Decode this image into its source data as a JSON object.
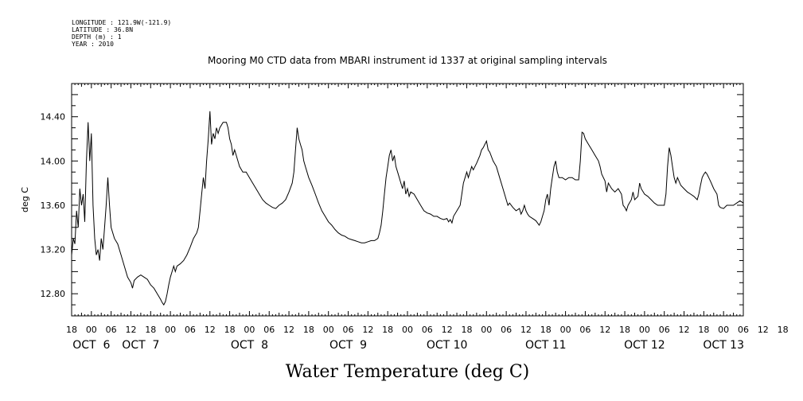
{
  "header_lines": [
    "LONGITUDE : 121.9W(-121.9)",
    "LATITUDE : 36.8N",
    "DEPTH (m) : 1",
    "YEAR : 2010"
  ],
  "chart_data": {
    "type": "line",
    "title": "Mooring M0 CTD data from MBARI instrument id 1337 at original sampling intervals",
    "xlabel": "Water Temperature (deg C)",
    "ylabel": "deg C",
    "x_unit": "hours since Oct 5 18:00",
    "xlim": [
      0,
      204
    ],
    "ylim": [
      12.6,
      14.7
    ],
    "yticks": [
      12.8,
      13.2,
      13.6,
      14.0,
      14.4
    ],
    "ytick_labels": [
      "12.80",
      "13.20",
      "13.60",
      "14.00",
      "14.40"
    ],
    "xtick_labels": [
      "18",
      "00",
      "06",
      "12",
      "18",
      "00",
      "06",
      "12",
      "18",
      "00",
      "06",
      "12",
      "18",
      "00",
      "06",
      "12",
      "18",
      "00",
      "06",
      "12",
      "18",
      "00",
      "06",
      "12",
      "18",
      "00",
      "06",
      "12",
      "18",
      "00",
      "06",
      "12",
      "18",
      "00",
      "06",
      "12",
      "18"
    ],
    "day_labels": [
      {
        "text": "OCT  6",
        "hour": 6
      },
      {
        "text": "OCT  7",
        "hour": 21
      },
      {
        "text": "OCT  8",
        "hour": 54
      },
      {
        "text": "OCT  9",
        "hour": 84
      },
      {
        "text": "OCT 10",
        "hour": 114
      },
      {
        "text": "OCT 11",
        "hour": 144
      },
      {
        "text": "OCT 12",
        "hour": 174
      },
      {
        "text": "OCT 13",
        "hour": 198
      }
    ],
    "grid": false,
    "series": [
      {
        "values": [
          [
            0,
            13.15
          ],
          [
            0.5,
            13.3
          ],
          [
            1,
            13.25
          ],
          [
            1.5,
            13.55
          ],
          [
            2,
            13.4
          ],
          [
            2.5,
            13.75
          ],
          [
            3,
            13.6
          ],
          [
            3.5,
            13.7
          ],
          [
            4,
            13.45
          ],
          [
            4.5,
            14.0
          ],
          [
            5,
            14.35
          ],
          [
            5.5,
            14.0
          ],
          [
            6,
            14.25
          ],
          [
            6.5,
            13.6
          ],
          [
            7,
            13.3
          ],
          [
            7.5,
            13.15
          ],
          [
            8,
            13.2
          ],
          [
            8.5,
            13.1
          ],
          [
            9,
            13.3
          ],
          [
            9.5,
            13.2
          ],
          [
            10,
            13.4
          ],
          [
            10.5,
            13.6
          ],
          [
            11,
            13.85
          ],
          [
            11.5,
            13.6
          ],
          [
            12,
            13.4
          ],
          [
            13,
            13.3
          ],
          [
            14,
            13.25
          ],
          [
            15,
            13.15
          ],
          [
            16,
            13.05
          ],
          [
            17,
            12.95
          ],
          [
            18,
            12.9
          ],
          [
            18.5,
            12.85
          ],
          [
            19,
            12.92
          ],
          [
            20,
            12.95
          ],
          [
            21,
            12.97
          ],
          [
            22,
            12.95
          ],
          [
            23,
            12.93
          ],
          [
            24,
            12.88
          ],
          [
            25,
            12.85
          ],
          [
            26,
            12.8
          ],
          [
            27,
            12.75
          ],
          [
            27.5,
            12.72
          ],
          [
            28,
            12.7
          ],
          [
            28.5,
            12.73
          ],
          [
            29,
            12.8
          ],
          [
            29.5,
            12.88
          ],
          [
            30,
            12.95
          ],
          [
            30.5,
            13.0
          ],
          [
            31,
            13.05
          ],
          [
            31.5,
            13.0
          ],
          [
            32,
            13.05
          ],
          [
            33,
            13.07
          ],
          [
            34,
            13.1
          ],
          [
            35,
            13.15
          ],
          [
            36,
            13.22
          ],
          [
            37,
            13.3
          ],
          [
            38,
            13.35
          ],
          [
            38.5,
            13.4
          ],
          [
            39,
            13.55
          ],
          [
            39.5,
            13.7
          ],
          [
            40,
            13.85
          ],
          [
            40.5,
            13.75
          ],
          [
            41,
            14.0
          ],
          [
            41.5,
            14.2
          ],
          [
            42,
            14.45
          ],
          [
            42.5,
            14.15
          ],
          [
            43,
            14.25
          ],
          [
            43.5,
            14.2
          ],
          [
            44,
            14.3
          ],
          [
            44.5,
            14.25
          ],
          [
            45,
            14.3
          ],
          [
            46,
            14.35
          ],
          [
            47,
            14.35
          ],
          [
            47.5,
            14.3
          ],
          [
            48,
            14.2
          ],
          [
            48.5,
            14.15
          ],
          [
            49,
            14.05
          ],
          [
            49.5,
            14.1
          ],
          [
            50,
            14.05
          ],
          [
            51,
            13.95
          ],
          [
            52,
            13.9
          ],
          [
            53,
            13.9
          ],
          [
            54,
            13.85
          ],
          [
            55,
            13.8
          ],
          [
            56,
            13.75
          ],
          [
            57,
            13.7
          ],
          [
            58,
            13.65
          ],
          [
            59,
            13.62
          ],
          [
            60,
            13.6
          ],
          [
            61,
            13.58
          ],
          [
            62,
            13.57
          ],
          [
            63,
            13.6
          ],
          [
            64,
            13.62
          ],
          [
            65,
            13.65
          ],
          [
            66,
            13.72
          ],
          [
            67,
            13.8
          ],
          [
            67.5,
            13.9
          ],
          [
            68,
            14.1
          ],
          [
            68.5,
            14.3
          ],
          [
            69,
            14.2
          ],
          [
            69.5,
            14.15
          ],
          [
            70,
            14.1
          ],
          [
            70.5,
            14.0
          ],
          [
            71,
            13.95
          ],
          [
            72,
            13.85
          ],
          [
            73,
            13.78
          ],
          [
            74,
            13.7
          ],
          [
            75,
            13.62
          ],
          [
            76,
            13.55
          ],
          [
            77,
            13.5
          ],
          [
            78,
            13.45
          ],
          [
            79,
            13.42
          ],
          [
            80,
            13.38
          ],
          [
            81,
            13.35
          ],
          [
            82,
            13.33
          ],
          [
            83,
            13.32
          ],
          [
            84,
            13.3
          ],
          [
            85,
            13.29
          ],
          [
            86,
            13.28
          ],
          [
            87,
            13.27
          ],
          [
            88,
            13.26
          ],
          [
            89,
            13.26
          ],
          [
            90,
            13.27
          ],
          [
            91,
            13.28
          ],
          [
            92,
            13.28
          ],
          [
            93,
            13.3
          ],
          [
            93.5,
            13.35
          ],
          [
            94,
            13.42
          ],
          [
            94.5,
            13.55
          ],
          [
            95,
            13.7
          ],
          [
            95.5,
            13.85
          ],
          [
            96,
            13.95
          ],
          [
            96.5,
            14.05
          ],
          [
            97,
            14.1
          ],
          [
            97.5,
            14.0
          ],
          [
            98,
            14.05
          ],
          [
            98.5,
            13.95
          ],
          [
            99,
            13.9
          ],
          [
            99.5,
            13.85
          ],
          [
            100,
            13.8
          ],
          [
            100.5,
            13.75
          ],
          [
            101,
            13.82
          ],
          [
            101.5,
            13.7
          ],
          [
            102,
            13.75
          ],
          [
            102.5,
            13.68
          ],
          [
            103,
            13.72
          ],
          [
            104,
            13.7
          ],
          [
            105,
            13.65
          ],
          [
            106,
            13.6
          ],
          [
            107,
            13.55
          ],
          [
            108,
            13.53
          ],
          [
            109,
            13.52
          ],
          [
            110,
            13.5
          ],
          [
            111,
            13.5
          ],
          [
            112,
            13.48
          ],
          [
            113,
            13.47
          ],
          [
            114,
            13.48
          ],
          [
            114.5,
            13.45
          ],
          [
            115,
            13.47
          ],
          [
            115.5,
            13.44
          ],
          [
            116,
            13.5
          ],
          [
            117,
            13.55
          ],
          [
            118,
            13.6
          ],
          [
            118.5,
            13.7
          ],
          [
            119,
            13.8
          ],
          [
            119.5,
            13.85
          ],
          [
            120,
            13.9
          ],
          [
            120.5,
            13.85
          ],
          [
            121,
            13.9
          ],
          [
            121.5,
            13.95
          ],
          [
            122,
            13.92
          ],
          [
            122.5,
            13.95
          ],
          [
            123,
            13.98
          ],
          [
            124,
            14.05
          ],
          [
            124.5,
            14.1
          ],
          [
            125,
            14.12
          ],
          [
            125.5,
            14.15
          ],
          [
            126,
            14.18
          ],
          [
            126.5,
            14.1
          ],
          [
            127,
            14.08
          ],
          [
            128,
            14.0
          ],
          [
            129,
            13.95
          ],
          [
            130,
            13.85
          ],
          [
            131,
            13.75
          ],
          [
            132,
            13.65
          ],
          [
            132.5,
            13.6
          ],
          [
            133,
            13.62
          ],
          [
            134,
            13.58
          ],
          [
            135,
            13.55
          ],
          [
            136,
            13.57
          ],
          [
            136.5,
            13.52
          ],
          [
            137,
            13.55
          ],
          [
            137.5,
            13.6
          ],
          [
            138,
            13.55
          ],
          [
            138.5,
            13.52
          ],
          [
            139,
            13.5
          ],
          [
            140,
            13.48
          ],
          [
            141,
            13.46
          ],
          [
            141.5,
            13.44
          ],
          [
            142,
            13.42
          ],
          [
            142.5,
            13.45
          ],
          [
            143,
            13.5
          ],
          [
            143.5,
            13.55
          ],
          [
            144,
            13.65
          ],
          [
            144.5,
            13.7
          ],
          [
            145,
            13.6
          ],
          [
            145.5,
            13.75
          ],
          [
            146,
            13.85
          ],
          [
            146.5,
            13.95
          ],
          [
            147,
            14.0
          ],
          [
            147.5,
            13.9
          ],
          [
            148,
            13.85
          ],
          [
            149,
            13.85
          ],
          [
            150,
            13.83
          ],
          [
            151,
            13.85
          ],
          [
            152,
            13.85
          ],
          [
            153,
            13.83
          ],
          [
            154,
            13.83
          ],
          [
            154.5,
            14.0
          ],
          [
            155,
            14.26
          ],
          [
            155.5,
            14.25
          ],
          [
            156,
            14.2
          ],
          [
            157,
            14.15
          ],
          [
            158,
            14.1
          ],
          [
            159,
            14.05
          ],
          [
            160,
            14.0
          ],
          [
            160.5,
            13.95
          ],
          [
            161,
            13.88
          ],
          [
            162,
            13.82
          ],
          [
            162.5,
            13.72
          ],
          [
            163,
            13.8
          ],
          [
            164,
            13.75
          ],
          [
            165,
            13.72
          ],
          [
            166,
            13.75
          ],
          [
            167,
            13.7
          ],
          [
            167.5,
            13.6
          ],
          [
            168,
            13.58
          ],
          [
            168.5,
            13.55
          ],
          [
            169,
            13.6
          ],
          [
            170,
            13.65
          ],
          [
            170.5,
            13.72
          ],
          [
            171,
            13.65
          ],
          [
            172,
            13.68
          ],
          [
            172.5,
            13.8
          ],
          [
            173,
            13.75
          ],
          [
            174,
            13.7
          ],
          [
            175,
            13.68
          ],
          [
            176,
            13.65
          ],
          [
            177,
            13.62
          ],
          [
            178,
            13.6
          ],
          [
            179,
            13.6
          ],
          [
            180,
            13.6
          ],
          [
            180.5,
            13.7
          ],
          [
            181,
            13.95
          ],
          [
            181.5,
            14.12
          ],
          [
            182,
            14.05
          ],
          [
            182.5,
            13.95
          ],
          [
            183,
            13.85
          ],
          [
            183.5,
            13.8
          ],
          [
            184,
            13.85
          ],
          [
            185,
            13.78
          ],
          [
            186,
            13.75
          ],
          [
            187,
            13.72
          ],
          [
            188,
            13.7
          ],
          [
            189,
            13.68
          ],
          [
            190,
            13.65
          ],
          [
            190.5,
            13.7
          ],
          [
            191,
            13.78
          ],
          [
            191.5,
            13.85
          ],
          [
            192,
            13.88
          ],
          [
            192.5,
            13.9
          ],
          [
            193,
            13.88
          ],
          [
            194,
            13.82
          ],
          [
            195,
            13.75
          ],
          [
            196,
            13.7
          ],
          [
            196.5,
            13.6
          ],
          [
            197,
            13.58
          ],
          [
            198,
            13.57
          ],
          [
            199,
            13.6
          ],
          [
            200,
            13.6
          ],
          [
            201,
            13.6
          ],
          [
            202,
            13.62
          ],
          [
            203,
            13.64
          ],
          [
            204,
            13.62
          ]
        ]
      }
    ]
  }
}
